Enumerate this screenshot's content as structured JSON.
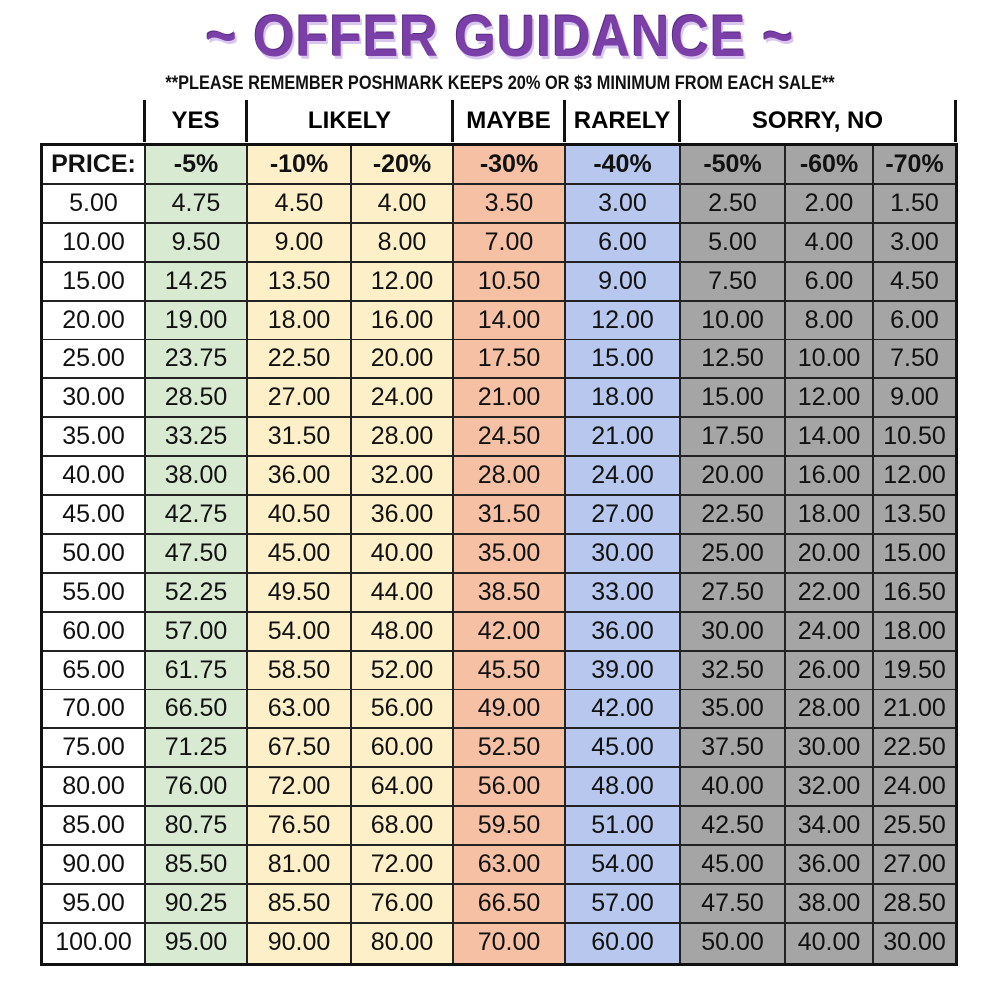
{
  "title": "~ OFFER GUIDANCE ~",
  "subtitle": "**PLEASE REMEMBER POSHMARK KEEPS 20% OR $3 MINIMUM FROM EACH SALE**",
  "colors": {
    "title": "#7b3fa8",
    "yes": "#d9ead3",
    "likely": "#fdf0c9",
    "maybe": "#f5c0a4",
    "rarely": "#b8c7ee",
    "sorry_no": "#a5a5a5"
  },
  "groups": [
    "",
    "YES",
    "LIKELY",
    "MAYBE",
    "RARELY",
    "SORRY, NO"
  ],
  "table": {
    "headers": [
      "PRICE:",
      "-5%",
      "-10%",
      "-20%",
      "-30%",
      "-40%",
      "-50%",
      "-60%",
      "-70%"
    ],
    "rows": [
      [
        "5.00",
        "4.75",
        "4.50",
        "4.00",
        "3.50",
        "3.00",
        "2.50",
        "2.00",
        "1.50"
      ],
      [
        "10.00",
        "9.50",
        "9.00",
        "8.00",
        "7.00",
        "6.00",
        "5.00",
        "4.00",
        "3.00"
      ],
      [
        "15.00",
        "14.25",
        "13.50",
        "12.00",
        "10.50",
        "9.00",
        "7.50",
        "6.00",
        "4.50"
      ],
      [
        "20.00",
        "19.00",
        "18.00",
        "16.00",
        "14.00",
        "12.00",
        "10.00",
        "8.00",
        "6.00"
      ],
      [
        "25.00",
        "23.75",
        "22.50",
        "20.00",
        "17.50",
        "15.00",
        "12.50",
        "10.00",
        "7.50"
      ],
      [
        "30.00",
        "28.50",
        "27.00",
        "24.00",
        "21.00",
        "18.00",
        "15.00",
        "12.00",
        "9.00"
      ],
      [
        "35.00",
        "33.25",
        "31.50",
        "28.00",
        "24.50",
        "21.00",
        "17.50",
        "14.00",
        "10.50"
      ],
      [
        "40.00",
        "38.00",
        "36.00",
        "32.00",
        "28.00",
        "24.00",
        "20.00",
        "16.00",
        "12.00"
      ],
      [
        "45.00",
        "42.75",
        "40.50",
        "36.00",
        "31.50",
        "27.00",
        "22.50",
        "18.00",
        "13.50"
      ],
      [
        "50.00",
        "47.50",
        "45.00",
        "40.00",
        "35.00",
        "30.00",
        "25.00",
        "20.00",
        "15.00"
      ],
      [
        "55.00",
        "52.25",
        "49.50",
        "44.00",
        "38.50",
        "33.00",
        "27.50",
        "22.00",
        "16.50"
      ],
      [
        "60.00",
        "57.00",
        "54.00",
        "48.00",
        "42.00",
        "36.00",
        "30.00",
        "24.00",
        "18.00"
      ],
      [
        "65.00",
        "61.75",
        "58.50",
        "52.00",
        "45.50",
        "39.00",
        "32.50",
        "26.00",
        "19.50"
      ],
      [
        "70.00",
        "66.50",
        "63.00",
        "56.00",
        "49.00",
        "42.00",
        "35.00",
        "28.00",
        "21.00"
      ],
      [
        "75.00",
        "71.25",
        "67.50",
        "60.00",
        "52.50",
        "45.00",
        "37.50",
        "30.00",
        "22.50"
      ],
      [
        "80.00",
        "76.00",
        "72.00",
        "64.00",
        "56.00",
        "48.00",
        "40.00",
        "32.00",
        "24.00"
      ],
      [
        "85.00",
        "80.75",
        "76.50",
        "68.00",
        "59.50",
        "51.00",
        "42.50",
        "34.00",
        "25.50"
      ],
      [
        "90.00",
        "85.50",
        "81.00",
        "72.00",
        "63.00",
        "54.00",
        "45.00",
        "36.00",
        "27.00"
      ],
      [
        "95.00",
        "90.25",
        "85.50",
        "76.00",
        "66.50",
        "57.00",
        "47.50",
        "38.00",
        "28.50"
      ],
      [
        "100.00",
        "95.00",
        "90.00",
        "80.00",
        "70.00",
        "60.00",
        "50.00",
        "40.00",
        "30.00"
      ]
    ]
  }
}
